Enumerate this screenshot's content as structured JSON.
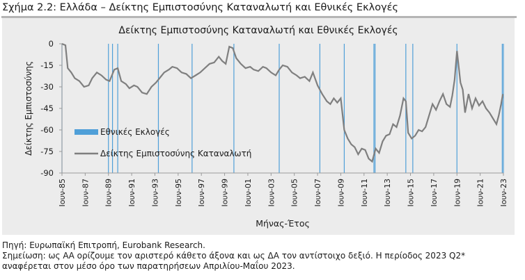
{
  "figure": {
    "title": "Σχήμα 2.2: Ελλάδα – Δείκτης Εμπιστοσύνης Καταναλωτή και Εθνικές Εκλογές"
  },
  "source": "Πηγή: Ευρωπαϊκή Επιτροπή, Eurobank Research.",
  "note_line1": "Σημείωση: ως ΑΑ ορίζουμε τον αριστερό κάθετο άξονα και ως ΔΑ τον αντίστοιχο δεξιό. Η περίοδος 2023 Q2*",
  "note_line2": "αναφέρεται στον μέσο όρο των παρατηρήσεων Απριλίου-Μαΐου 2023.",
  "colors": {
    "line": "#7f7f7f",
    "elections": "#4f9fd8",
    "panel": "#ececec"
  },
  "chart_data": {
    "type": "line",
    "title": "Δείκτης Εμπιστοσύνης Καταναλωτή και Εθνικές Εκλογές",
    "xlabel": "Μήνας-Έτος",
    "ylabel": "Δείκτης Εμπιστοσύνης",
    "ylim": [
      -90,
      0
    ],
    "yticks": [
      0,
      -15,
      -30,
      -45,
      -60,
      -75,
      -90
    ],
    "ytick_labels": [
      "0",
      "-15",
      "-30",
      "-45",
      "-60",
      "-75",
      "-90"
    ],
    "xlim": [
      1985.5,
      2023.5
    ],
    "xtick_labels": [
      "Ιουν-85",
      "Ιουν-87",
      "Ιουν-89",
      "Ιουν-91",
      "Ιουν-93",
      "Ιουν-95",
      "Ιουν-97",
      "Ιουν-99",
      "Ιουν-01",
      "Ιουν-03",
      "Ιουν-05",
      "Ιουν-07",
      "Ιουν-09",
      "Ιουν-11",
      "Ιουν-13",
      "Ιουν-15",
      "Ιουν-17",
      "Ιουν-19",
      "Ιουν-21",
      "Ιουν-23"
    ],
    "xtick_values": [
      1985.5,
      1987.5,
      1989.5,
      1991.5,
      1993.5,
      1995.5,
      1997.5,
      1999.5,
      2001.5,
      2003.5,
      2005.5,
      2007.5,
      2009.5,
      2011.5,
      2013.5,
      2015.5,
      2017.5,
      2019.5,
      2021.5,
      2023.5
    ],
    "grid": false,
    "legend_position": "left-center",
    "series": [
      {
        "name": "Δείκτης Εμπιστοσύνης Καταναλωτή",
        "x": [
          1985.5,
          1985.8,
          1986.0,
          1986.3,
          1986.6,
          1987.0,
          1987.4,
          1987.8,
          1988.1,
          1988.5,
          1988.9,
          1989.3,
          1989.6,
          1990.0,
          1990.3,
          1990.6,
          1991.0,
          1991.3,
          1991.7,
          1992.0,
          1992.4,
          1992.8,
          1993.2,
          1993.6,
          1994.0,
          1994.3,
          1994.7,
          1995.0,
          1995.4,
          1995.8,
          1996.2,
          1996.6,
          1997.0,
          1997.4,
          1997.8,
          1998.2,
          1998.6,
          1999.0,
          1999.3,
          1999.6,
          1999.9,
          2000.2,
          2000.5,
          2000.9,
          2001.3,
          2001.7,
          2002.0,
          2002.4,
          2002.8,
          2003.1,
          2003.5,
          2003.9,
          2004.2,
          2004.5,
          2004.9,
          2005.3,
          2005.7,
          2006.0,
          2006.4,
          2006.8,
          2007.1,
          2007.5,
          2007.9,
          2008.3,
          2008.6,
          2008.9,
          2009.2,
          2009.5,
          2009.8,
          2010.1,
          2010.4,
          2010.7,
          2011.0,
          2011.3,
          2011.6,
          2011.9,
          2012.2,
          2012.5,
          2012.8,
          2013.1,
          2013.4,
          2013.7,
          2014.0,
          2014.3,
          2014.6,
          2014.9,
          2015.1,
          2015.3,
          2015.6,
          2015.9,
          2016.2,
          2016.5,
          2016.8,
          2017.1,
          2017.4,
          2017.7,
          2018.0,
          2018.3,
          2018.6,
          2018.9,
          2019.1,
          2019.3,
          2019.5,
          2019.8,
          2020.0,
          2020.2,
          2020.5,
          2020.8,
          2021.1,
          2021.4,
          2021.7,
          2022.0,
          2022.3,
          2022.6,
          2022.9,
          2023.1,
          2023.3,
          2023.45
        ],
        "values": [
          0,
          -1,
          -17,
          -20,
          -24,
          -26,
          -30,
          -29,
          -24,
          -20,
          -22,
          -25,
          -26,
          -18,
          -17,
          -26,
          -28,
          -31,
          -29,
          -30,
          -34,
          -35,
          -30,
          -27,
          -23,
          -20,
          -18,
          -16,
          -17,
          -20,
          -21,
          -24,
          -22,
          -20,
          -17,
          -14,
          -13,
          -9,
          -12,
          -14,
          -2,
          -3,
          -10,
          -14,
          -17,
          -16,
          -18,
          -19,
          -16,
          -17,
          -20,
          -22,
          -18,
          -15,
          -16,
          -20,
          -22,
          -24,
          -23,
          -26,
          -20,
          -29,
          -35,
          -40,
          -42,
          -38,
          -41,
          -38,
          -60,
          -66,
          -70,
          -72,
          -77,
          -73,
          -74,
          -80,
          -82,
          -73,
          -76,
          -68,
          -64,
          -63,
          -56,
          -58,
          -50,
          -38,
          -40,
          -62,
          -66,
          -64,
          -60,
          -61,
          -58,
          -50,
          -42,
          -46,
          -40,
          -35,
          -42,
          -44,
          -36,
          -25,
          -5,
          -27,
          -32,
          -48,
          -35,
          -45,
          -38,
          -43,
          -40,
          -45,
          -48,
          -52,
          -56,
          -50,
          -42,
          -35
        ]
      },
      {
        "name": "Εθνικές Εκλογές",
        "election_dates": [
          1985.5,
          1989.5,
          1989.85,
          1990.3,
          1993.8,
          1996.7,
          2000.3,
          2004.2,
          2007.7,
          2009.8,
          2012.35,
          2012.45,
          2015.1,
          2015.7,
          2019.5,
          2023.4,
          2023.5
        ]
      }
    ]
  }
}
